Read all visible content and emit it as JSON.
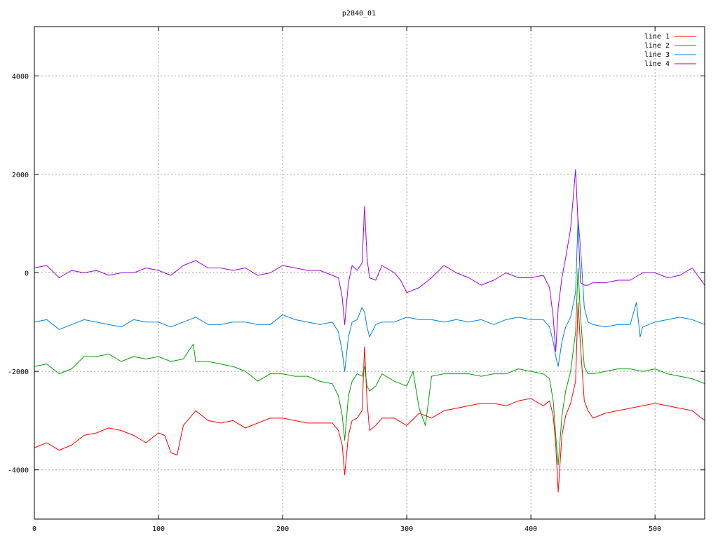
{
  "chart_data": {
    "type": "line",
    "title": "p2840_01",
    "xlabel": "",
    "ylabel": "",
    "xlim": [
      0,
      540
    ],
    "ylim": [
      -5000,
      5000
    ],
    "xticks": [
      0,
      100,
      200,
      300,
      400,
      500
    ],
    "yticks": [
      -4000,
      -2000,
      0,
      2000,
      4000
    ],
    "xtick_labels": [
      "0",
      "100",
      "200",
      "300",
      "400",
      "500"
    ],
    "ytick_labels": [
      "-4000",
      "-2000",
      "0",
      "2000",
      "4000"
    ],
    "grid": true,
    "legend_position": "top-right",
    "series": [
      {
        "name": "line 1",
        "color": "#ff0000",
        "x": [
          0,
          10,
          20,
          30,
          40,
          50,
          60,
          70,
          80,
          90,
          100,
          105,
          110,
          115,
          120,
          125,
          130,
          140,
          150,
          160,
          170,
          180,
          190,
          200,
          210,
          220,
          230,
          240,
          245,
          248,
          250,
          253,
          256,
          260,
          264,
          266,
          268,
          270,
          275,
          280,
          290,
          300,
          310,
          320,
          330,
          340,
          350,
          360,
          370,
          380,
          390,
          400,
          410,
          415,
          418,
          420,
          422,
          425,
          428,
          432,
          436,
          438,
          440,
          443,
          446,
          450,
          460,
          470,
          480,
          490,
          500,
          510,
          520,
          530,
          540
        ],
        "y": [
          -3550,
          -3450,
          -3600,
          -3500,
          -3300,
          -3250,
          -3150,
          -3200,
          -3300,
          -3450,
          -3250,
          -3300,
          -3650,
          -3700,
          -3100,
          -2950,
          -2800,
          -3000,
          -3050,
          -3000,
          -3150,
          -3050,
          -2950,
          -2950,
          -3000,
          -3050,
          -3050,
          -3050,
          -3200,
          -3500,
          -4100,
          -3300,
          -3000,
          -2950,
          -2800,
          -1500,
          -2600,
          -3200,
          -3100,
          -2950,
          -2950,
          -3100,
          -2850,
          -2950,
          -2800,
          -2750,
          -2700,
          -2650,
          -2650,
          -2700,
          -2600,
          -2550,
          -2700,
          -2600,
          -2900,
          -3500,
          -4450,
          -3300,
          -2900,
          -2650,
          -2200,
          -600,
          -1500,
          -2600,
          -2800,
          -2950,
          -2850,
          -2800,
          -2750,
          -2700,
          -2650,
          -2700,
          -2750,
          -2800,
          -3000
        ]
      },
      {
        "name": "line 2",
        "color": "#00a000",
        "x": [
          0,
          10,
          20,
          30,
          40,
          50,
          60,
          70,
          80,
          90,
          100,
          110,
          120,
          128,
          130,
          140,
          150,
          160,
          170,
          180,
          190,
          200,
          210,
          220,
          230,
          240,
          245,
          248,
          250,
          253,
          256,
          260,
          264,
          266,
          268,
          270,
          275,
          280,
          290,
          300,
          305,
          310,
          315,
          320,
          330,
          340,
          350,
          360,
          370,
          380,
          390,
          400,
          410,
          415,
          418,
          420,
          422,
          425,
          428,
          432,
          436,
          438,
          440,
          443,
          446,
          450,
          460,
          470,
          480,
          490,
          500,
          510,
          520,
          530,
          540
        ],
        "y": [
          -1900,
          -1850,
          -2050,
          -1950,
          -1700,
          -1700,
          -1650,
          -1800,
          -1700,
          -1750,
          -1700,
          -1800,
          -1750,
          -1450,
          -1800,
          -1800,
          -1850,
          -1900,
          -2000,
          -2200,
          -2050,
          -2050,
          -2100,
          -2100,
          -2200,
          -2250,
          -2500,
          -2900,
          -3400,
          -2500,
          -2200,
          -2050,
          -2100,
          -1900,
          -2300,
          -2400,
          -2300,
          -2050,
          -2200,
          -2300,
          -2000,
          -2750,
          -3100,
          -2100,
          -2050,
          -2050,
          -2050,
          -2100,
          -2050,
          -2050,
          -1950,
          -2000,
          -2050,
          -2150,
          -2600,
          -3300,
          -3900,
          -2900,
          -2400,
          -2000,
          -1200,
          100,
          -900,
          -1900,
          -2050,
          -2050,
          -2000,
          -1950,
          -1950,
          -2000,
          -1950,
          -2050,
          -2100,
          -2150,
          -2250
        ]
      },
      {
        "name": "line 3",
        "color": "#0080e0",
        "x": [
          0,
          10,
          20,
          30,
          40,
          50,
          60,
          70,
          80,
          90,
          100,
          110,
          120,
          130,
          140,
          150,
          160,
          170,
          180,
          190,
          200,
          210,
          220,
          230,
          240,
          245,
          248,
          250,
          253,
          256,
          260,
          264,
          266,
          268,
          270,
          275,
          280,
          290,
          300,
          310,
          320,
          330,
          340,
          350,
          360,
          370,
          380,
          390,
          400,
          410,
          415,
          418,
          420,
          422,
          425,
          428,
          432,
          436,
          438,
          440,
          443,
          446,
          450,
          460,
          470,
          480,
          485,
          488,
          490,
          500,
          510,
          520,
          530,
          540
        ],
        "y": [
          -1000,
          -950,
          -1150,
          -1050,
          -950,
          -1000,
          -1050,
          -1100,
          -950,
          -1000,
          -1000,
          -1100,
          -1000,
          -900,
          -1050,
          -1050,
          -1000,
          -1000,
          -1050,
          -1050,
          -850,
          -950,
          -1000,
          -1050,
          -1000,
          -1200,
          -1600,
          -2000,
          -1300,
          -1000,
          -950,
          -700,
          -800,
          -1100,
          -1300,
          -1050,
          -1000,
          -1000,
          -900,
          -950,
          -950,
          -1000,
          -950,
          -1000,
          -950,
          -1050,
          -950,
          -900,
          -950,
          -950,
          -1100,
          -1400,
          -1700,
          -1900,
          -1400,
          -1100,
          -900,
          -400,
          1100,
          500,
          -700,
          -1000,
          -1050,
          -1100,
          -1050,
          -1050,
          -600,
          -1300,
          -1100,
          -1000,
          -950,
          -900,
          -950,
          -1050
        ]
      },
      {
        "name": "line 4",
        "color": "#a000e0",
        "x": [
          0,
          10,
          20,
          30,
          40,
          50,
          60,
          70,
          80,
          90,
          100,
          110,
          120,
          130,
          140,
          150,
          160,
          170,
          180,
          190,
          200,
          210,
          220,
          230,
          240,
          245,
          248,
          250,
          253,
          256,
          260,
          264,
          266,
          268,
          270,
          275,
          280,
          290,
          295,
          300,
          310,
          320,
          330,
          340,
          350,
          360,
          370,
          380,
          390,
          400,
          410,
          415,
          418,
          420,
          422,
          425,
          428,
          432,
          436,
          438,
          440,
          443,
          446,
          450,
          460,
          470,
          480,
          490,
          500,
          510,
          520,
          530,
          540
        ],
        "y": [
          100,
          150,
          -100,
          50,
          0,
          50,
          -50,
          0,
          0,
          100,
          50,
          -50,
          150,
          250,
          100,
          100,
          50,
          100,
          -50,
          0,
          150,
          100,
          50,
          50,
          -50,
          -100,
          -500,
          -1050,
          -200,
          150,
          50,
          200,
          1350,
          300,
          -100,
          -150,
          150,
          0,
          -150,
          -400,
          -300,
          -100,
          150,
          0,
          -100,
          -250,
          -150,
          0,
          -100,
          -100,
          -50,
          -300,
          -900,
          -1600,
          -700,
          -100,
          300,
          900,
          2100,
          1000,
          -200,
          -250,
          -250,
          -200,
          -200,
          -150,
          -150,
          0,
          0,
          -100,
          -50,
          100,
          -250
        ]
      }
    ]
  }
}
